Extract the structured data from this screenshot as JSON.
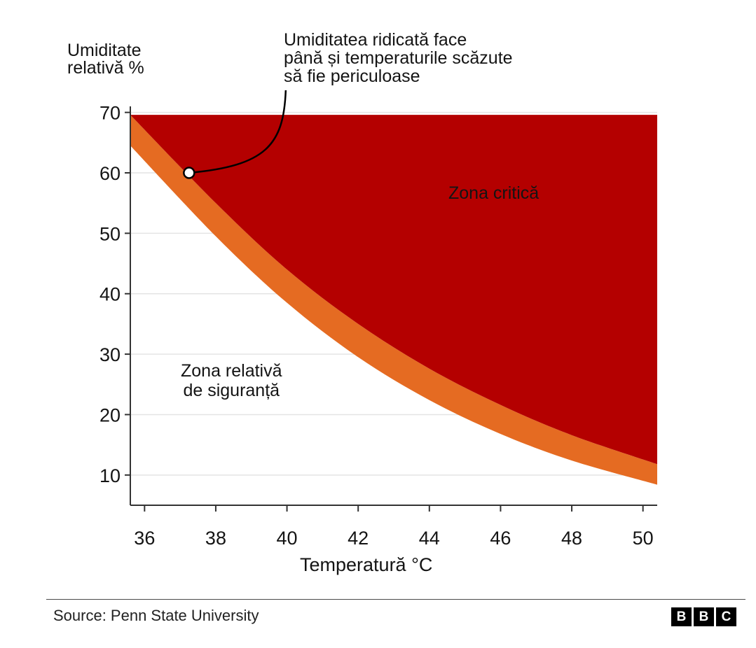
{
  "chart_data": {
    "type": "area",
    "title": "",
    "ylabel_lines": [
      "Umiditate",
      "relativă %"
    ],
    "xlabel": "Temperatură °C",
    "xlim": [
      35.6,
      50.4
    ],
    "ylim": [
      5,
      71
    ],
    "x_ticks": [
      36,
      38,
      40,
      42,
      44,
      46,
      48,
      50
    ],
    "y_ticks": [
      10,
      20,
      30,
      40,
      50,
      60,
      70
    ],
    "grid": true,
    "critical_ceiling": 69.6,
    "series": [
      {
        "role": "critical",
        "points": [
          [
            35.6,
            69.6
          ],
          [
            38,
            55
          ],
          [
            40,
            44
          ],
          [
            42,
            35
          ],
          [
            44,
            27.6
          ],
          [
            46,
            21.6
          ],
          [
            48,
            16.6
          ],
          [
            50.4,
            11.8
          ]
        ]
      },
      {
        "role": "caution-band-lower",
        "points": [
          [
            35.6,
            64.5
          ],
          [
            38,
            49.5
          ],
          [
            40,
            38.5
          ],
          [
            42,
            29.5
          ],
          [
            44,
            22.4
          ],
          [
            46,
            16.8
          ],
          [
            48,
            12.4
          ],
          [
            50.4,
            8.4
          ]
        ]
      }
    ],
    "annotations": {
      "callout_point": [
        37.25,
        60
      ],
      "callout_lines": [
        "Umiditatea ridicată face",
        "până și temperaturile scăzute",
        "să fie periculoase"
      ],
      "critical_zone_label": "Zona critică",
      "safe_zone_lines": [
        "Zona relativă",
        "de siguranță"
      ]
    },
    "colors": {
      "critical": "#b40000",
      "caution": "#e56b22",
      "grid": "#e4e4e4",
      "axis": "#333333",
      "text": "#141414"
    }
  },
  "footer": {
    "source": "Source: Penn State University",
    "logo_letters": [
      "B",
      "B",
      "C"
    ]
  }
}
